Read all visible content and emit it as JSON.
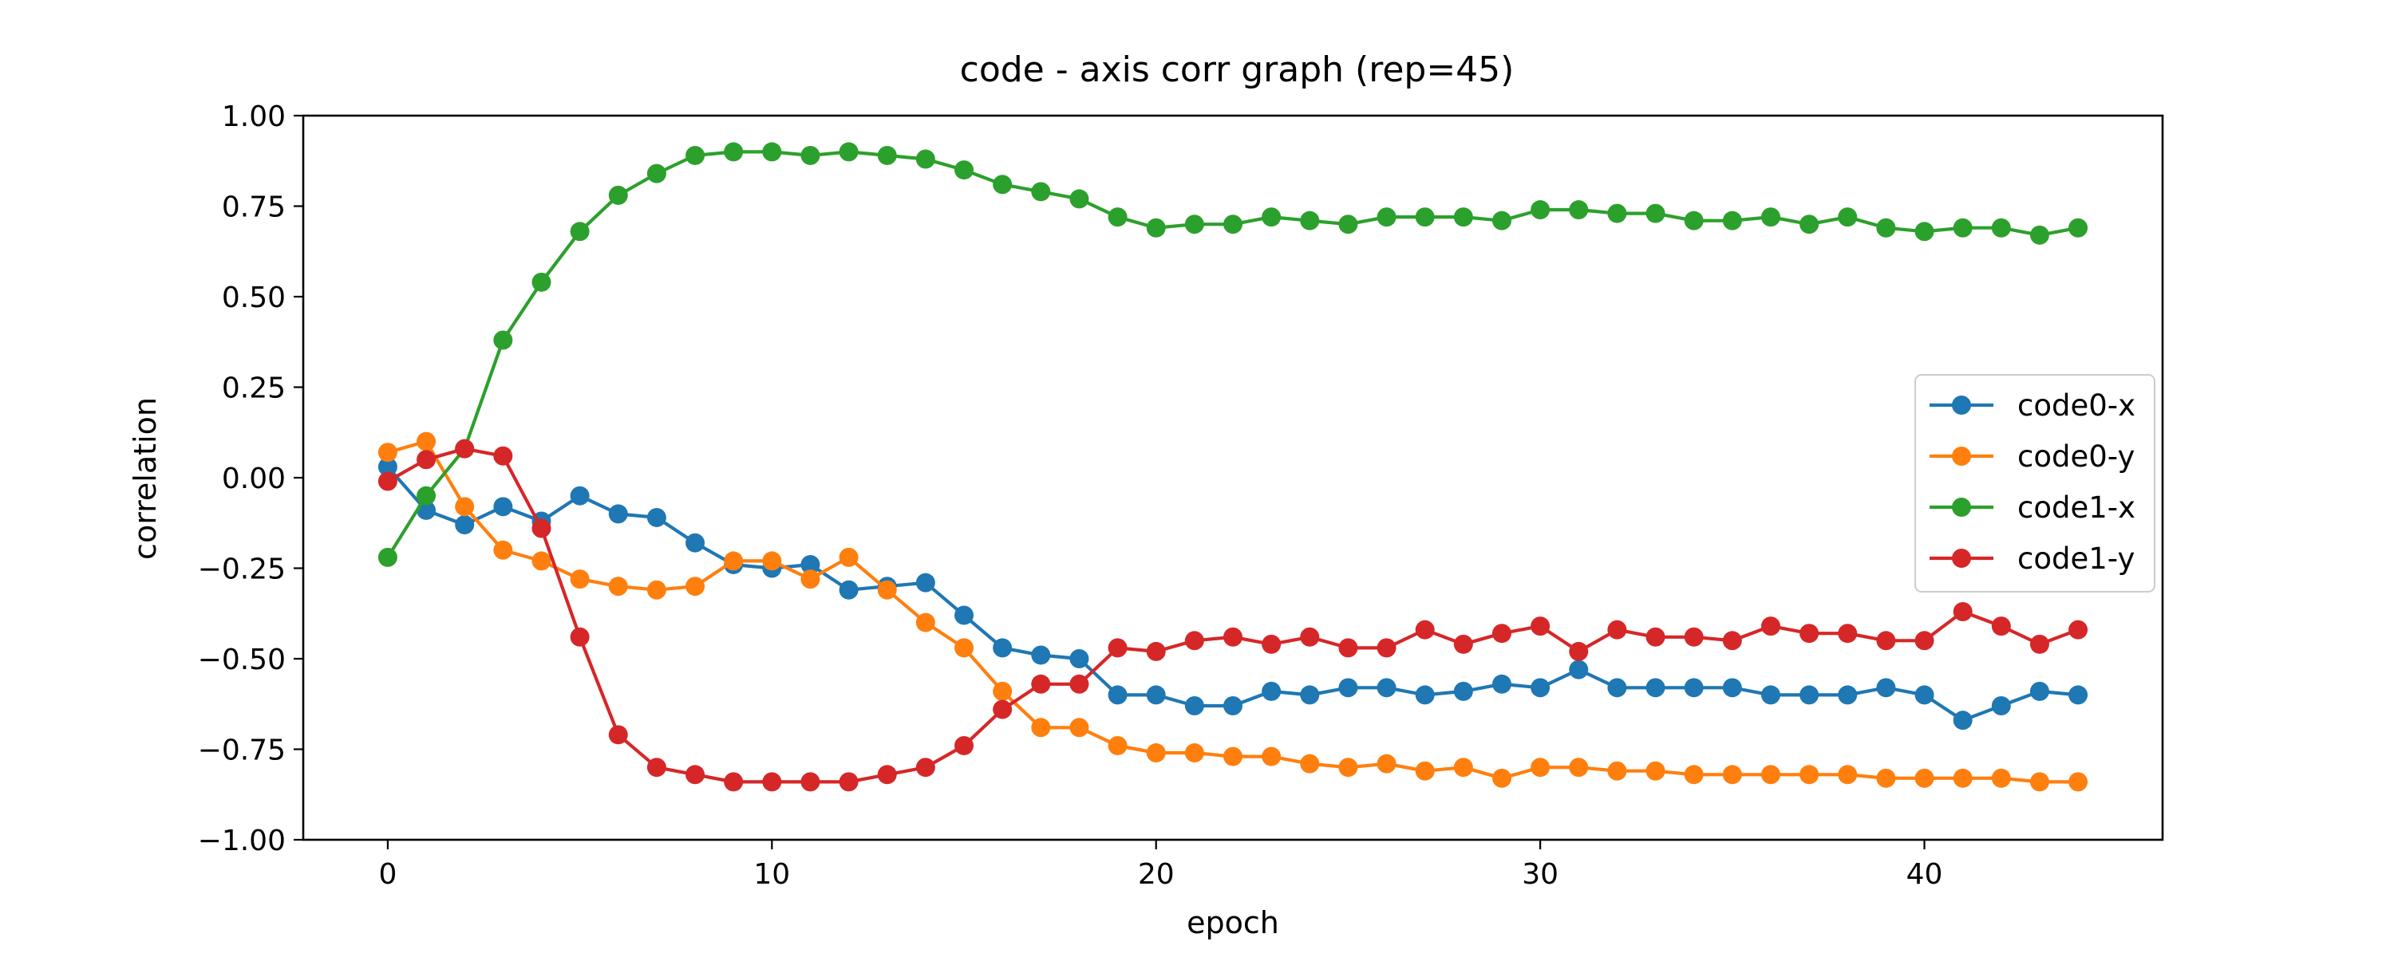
{
  "chart_data": {
    "type": "line",
    "title": "code - axis corr graph (rep=45)",
    "xlabel": "epoch",
    "ylabel": "correlation",
    "xlim": [
      -2.2,
      46.2
    ],
    "ylim": [
      -1.0,
      1.0
    ],
    "xticks": [
      0,
      10,
      20,
      30,
      40
    ],
    "yticks": [
      1.0,
      0.75,
      0.5,
      0.25,
      0.0,
      -0.25,
      -0.5,
      -0.75,
      -1.0
    ],
    "xtick_labels": [
      "0",
      "10",
      "20",
      "30",
      "40"
    ],
    "ytick_labels": [
      "1.00",
      "0.75",
      "0.50",
      "0.25",
      "0.00",
      "−0.25",
      "−0.50",
      "−0.75",
      "−1.00"
    ],
    "grid": false,
    "legend_position": "center-right",
    "x": [
      0,
      1,
      2,
      3,
      4,
      5,
      6,
      7,
      8,
      9,
      10,
      11,
      12,
      13,
      14,
      15,
      16,
      17,
      18,
      19,
      20,
      21,
      22,
      23,
      24,
      25,
      26,
      27,
      28,
      29,
      30,
      31,
      32,
      33,
      34,
      35,
      36,
      37,
      38,
      39,
      40,
      41,
      42,
      43,
      44
    ],
    "series": [
      {
        "name": "code0-x",
        "color": "#1f77b4",
        "values": [
          0.03,
          -0.09,
          -0.13,
          -0.08,
          -0.12,
          -0.05,
          -0.1,
          -0.11,
          -0.18,
          -0.24,
          -0.25,
          -0.24,
          -0.31,
          -0.3,
          -0.29,
          -0.38,
          -0.47,
          -0.49,
          -0.5,
          -0.6,
          -0.6,
          -0.63,
          -0.63,
          -0.59,
          -0.6,
          -0.58,
          -0.58,
          -0.6,
          -0.59,
          -0.57,
          -0.58,
          -0.53,
          -0.58,
          -0.58,
          -0.58,
          -0.58,
          -0.6,
          -0.6,
          -0.6,
          -0.58,
          -0.6,
          -0.67,
          -0.63,
          -0.59,
          -0.6
        ]
      },
      {
        "name": "code0-y",
        "color": "#ff7f0e",
        "values": [
          0.07,
          0.1,
          -0.08,
          -0.2,
          -0.23,
          -0.28,
          -0.3,
          -0.31,
          -0.3,
          -0.23,
          -0.23,
          -0.28,
          -0.22,
          -0.31,
          -0.4,
          -0.47,
          -0.59,
          -0.69,
          -0.69,
          -0.74,
          -0.76,
          -0.76,
          -0.77,
          -0.77,
          -0.79,
          -0.8,
          -0.79,
          -0.81,
          -0.8,
          -0.83,
          -0.8,
          -0.8,
          -0.81,
          -0.81,
          -0.82,
          -0.82,
          -0.82,
          -0.82,
          -0.82,
          -0.83,
          -0.83,
          -0.83,
          -0.83,
          -0.84,
          -0.84
        ]
      },
      {
        "name": "code1-x",
        "color": "#2ca02c",
        "values": [
          -0.22,
          -0.05,
          0.08,
          0.38,
          0.54,
          0.68,
          0.78,
          0.84,
          0.89,
          0.9,
          0.9,
          0.89,
          0.9,
          0.89,
          0.88,
          0.85,
          0.81,
          0.79,
          0.77,
          0.72,
          0.69,
          0.7,
          0.7,
          0.72,
          0.71,
          0.7,
          0.72,
          0.72,
          0.72,
          0.71,
          0.74,
          0.74,
          0.73,
          0.73,
          0.71,
          0.71,
          0.72,
          0.7,
          0.72,
          0.69,
          0.68,
          0.69,
          0.69,
          0.67,
          0.69
        ]
      },
      {
        "name": "code1-y",
        "color": "#d62728",
        "values": [
          -0.01,
          0.05,
          0.08,
          0.06,
          -0.14,
          -0.44,
          -0.71,
          -0.8,
          -0.82,
          -0.84,
          -0.84,
          -0.84,
          -0.84,
          -0.82,
          -0.8,
          -0.74,
          -0.64,
          -0.57,
          -0.57,
          -0.47,
          -0.48,
          -0.45,
          -0.44,
          -0.46,
          -0.44,
          -0.47,
          -0.47,
          -0.42,
          -0.46,
          -0.43,
          -0.41,
          -0.48,
          -0.42,
          -0.44,
          -0.44,
          -0.45,
          -0.41,
          -0.43,
          -0.43,
          -0.45,
          -0.45,
          -0.37,
          -0.41,
          -0.46,
          -0.42
        ]
      }
    ]
  }
}
